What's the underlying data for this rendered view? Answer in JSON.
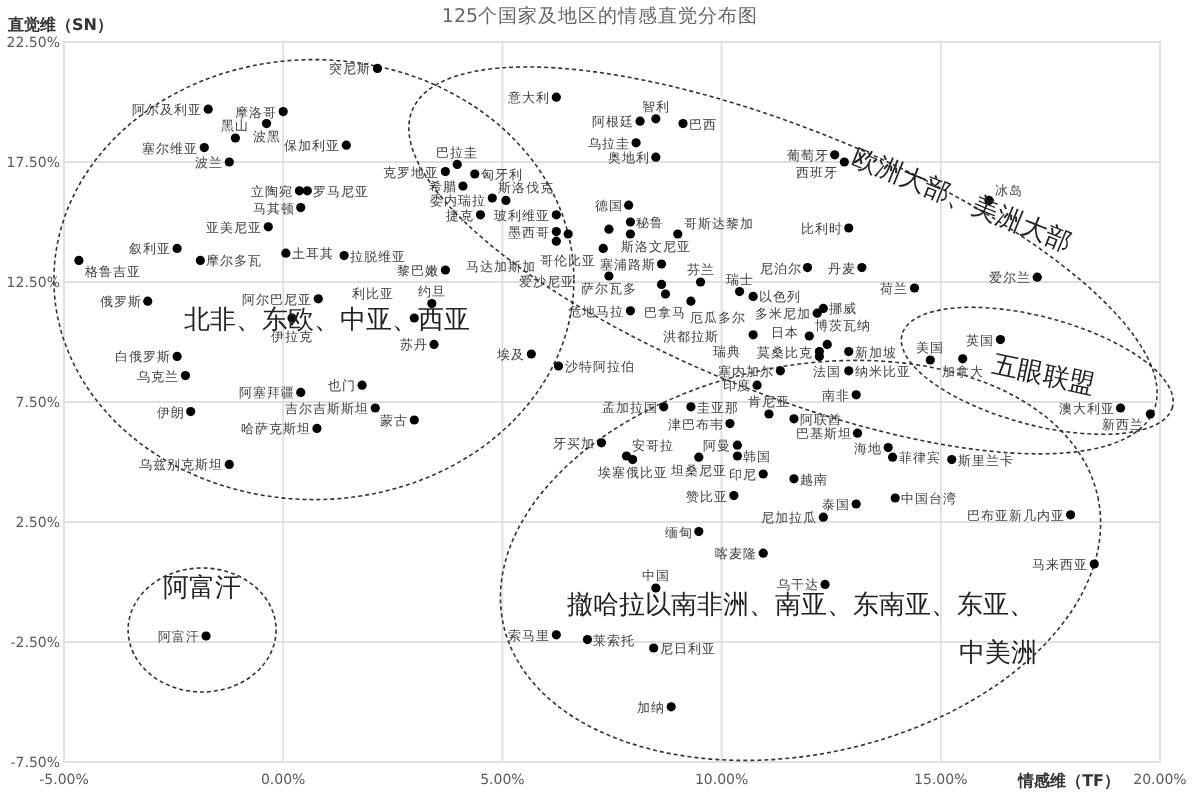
{
  "chart_data": {
    "type": "scatter",
    "title": "125个国家及地区的情感直觉分布图",
    "xlabel": "情感维（TF）",
    "ylabel": "直觉维（SN）",
    "xlim": [
      -5,
      20
    ],
    "ylim": [
      -7.5,
      22.5
    ],
    "xticks": [
      {
        "value": -5,
        "label": "-5.00%"
      },
      {
        "value": 0,
        "label": "0.00%"
      },
      {
        "value": 5,
        "label": "5.00%"
      },
      {
        "value": 10,
        "label": "10.00%"
      },
      {
        "value": 15,
        "label": "15.00%"
      },
      {
        "value": 20,
        "label": "20.00%"
      }
    ],
    "yticks": [
      {
        "value": -7.5,
        "label": "-7.50%"
      },
      {
        "value": -2.5,
        "label": "-2.50%"
      },
      {
        "value": 2.5,
        "label": "2.50%"
      },
      {
        "value": 7.5,
        "label": "7.50%"
      },
      {
        "value": 12.5,
        "label": "12.50%"
      },
      {
        "value": 17.5,
        "label": "17.50%"
      },
      {
        "value": 22.5,
        "label": "22.50%"
      }
    ],
    "grid": true,
    "marker": "circle",
    "series": [
      {
        "color": "#000000",
        "x": [
          2.15,
          -1.71,
          0.0,
          -0.38,
          -1.09,
          1.44,
          -1.8,
          -1.23,
          0.37,
          0.55,
          0.4,
          -0.34,
          -2.42,
          -4.66,
          -1.89,
          0.06,
          1.39,
          0.8,
          -3.09,
          0.2,
          -2.42,
          -2.23,
          1.8,
          0.4,
          -2.11,
          2.1,
          0.77,
          -1.23,
          -1.76,
          3.39,
          2.99,
          3.44,
          2.99,
          3.7,
          5.66,
          6.28,
          6.23,
          8.5,
          8.14,
          9.12,
          8.05,
          8.5,
          3.97,
          3.7,
          4.37,
          4.1,
          4.77,
          5.08,
          4.5,
          6.23,
          7.88,
          7.92,
          7.43,
          6.23,
          6.5,
          6.23,
          7.3,
          9.0,
          7.92,
          8.63,
          9.52,
          7.43,
          8.63,
          8.72,
          7.92,
          9.3,
          10.41,
          10.72,
          12.32,
          12.18,
          12.0,
          12.41,
          12.9,
          12.23,
          12.23,
          12.9,
          13.07,
          10.72,
          10.81,
          11.34,
          11.08,
          12.58,
          12.8,
          16.1,
          12.9,
          11.96,
          13.2,
          14.4,
          17.2,
          14.76,
          15.5,
          16.36,
          19.1,
          19.78,
          8.68,
          9.3,
          10.19,
          7.26,
          7.83,
          7.97,
          9.48,
          10.36,
          10.36,
          10.28,
          10.95,
          9.48,
          10.95,
          8.5,
          6.23,
          6.94,
          8.45,
          8.85,
          11.65,
          13.1,
          13.8,
          13.9,
          15.25,
          13.07,
          11.65,
          13.96,
          12.32,
          17.96,
          18.5,
          12.36
        ],
        "values": [
          21.4,
          19.7,
          19.6,
          19.1,
          18.5,
          18.2,
          18.1,
          17.5,
          16.3,
          16.3,
          15.6,
          14.8,
          13.9,
          13.4,
          13.4,
          13.7,
          13.6,
          11.8,
          11.7,
          11.0,
          9.4,
          8.6,
          8.2,
          7.9,
          7.1,
          7.25,
          6.4,
          4.9,
          -2.25,
          11.6,
          11.0,
          9.9,
          6.75,
          13.0,
          9.5,
          9.0,
          20.2,
          19.3,
          19.2,
          19.1,
          18.3,
          17.7,
          17.4,
          17.1,
          17.0,
          16.5,
          16.0,
          15.9,
          15.3,
          15.3,
          15.7,
          15.0,
          14.7,
          14.6,
          14.5,
          14.2,
          13.9,
          14.5,
          14.5,
          13.25,
          12.5,
          12.75,
          12.4,
          12.0,
          11.3,
          11.7,
          12.1,
          11.9,
          11.4,
          11.2,
          10.25,
          9.9,
          9.6,
          9.6,
          9.4,
          8.8,
          7.8,
          10.3,
          8.2,
          8.8,
          7.0,
          17.8,
          17.5,
          15.9,
          14.75,
          13.1,
          13.1,
          12.25,
          12.7,
          9.25,
          9.3,
          10.1,
          7.25,
          7.0,
          7.3,
          7.3,
          6.6,
          5.8,
          5.25,
          5.1,
          5.2,
          5.7,
          5.25,
          3.6,
          4.5,
          2.1,
          1.2,
          -0.25,
          -2.2,
          -2.4,
          -2.75,
          -5.2,
          6.8,
          6.2,
          5.6,
          5.2,
          5.1,
          3.25,
          4.3,
          3.5,
          2.7,
          2.8,
          0.75,
          -0.1
        ]
      }
    ],
    "annotations": [
      "北非、东欧、中亚、西亚",
      "欧洲大部、美洲大部",
      "五眼联盟",
      "撤哈拉以南非洲、南亚、东南亚、东亚、",
      "中美洲",
      "阿富汗",
      {
        "text": "突尼斯",
        "x": 2.15,
        "y": 21.4
      },
      {
        "text": "阿尔及利亚",
        "x": -1.71,
        "y": 19.7
      },
      {
        "text": "摩洛哥",
        "x": 0.0,
        "y": 19.6
      },
      {
        "text": "波黑",
        "x": -0.38,
        "y": 19.1
      },
      {
        "text": "黑山",
        "x": -1.09,
        "y": 18.5
      },
      {
        "text": "保加利亚",
        "x": 1.44,
        "y": 18.2
      },
      {
        "text": "塞尔维亚",
        "x": -1.8,
        "y": 18.1
      },
      {
        "text": "波兰",
        "x": -1.23,
        "y": 17.5
      },
      {
        "text": "立陶宛",
        "x": 0.37,
        "y": 16.3
      },
      {
        "text": "罗马尼亚",
        "x": 0.55,
        "y": 16.3
      },
      {
        "text": "马其顿",
        "x": 0.4,
        "y": 15.6
      },
      {
        "text": "亚美尼亚",
        "x": -0.34,
        "y": 14.8
      },
      {
        "text": "叙利亚",
        "x": -2.42,
        "y": 13.9
      },
      {
        "text": "格鲁吉亚",
        "x": -4.66,
        "y": 13.4
      },
      {
        "text": "摩尔多瓦",
        "x": -1.89,
        "y": 13.4
      },
      {
        "text": "土耳其",
        "x": 0.06,
        "y": 13.7
      },
      {
        "text": "拉脱维亚",
        "x": 1.39,
        "y": 13.6
      },
      {
        "text": "阿尔巴尼亚",
        "x": 0.8,
        "y": 11.8
      },
      {
        "text": "俄罗斯",
        "x": -3.09,
        "y": 11.7
      },
      {
        "text": "伊拉克",
        "x": 0.2,
        "y": 11.0
      },
      {
        "text": "白俄罗斯",
        "x": -2.42,
        "y": 9.4
      },
      {
        "text": "乌克兰",
        "x": -2.23,
        "y": 8.6
      },
      {
        "text": "也门",
        "x": 1.8,
        "y": 8.2
      },
      {
        "text": "阿塞拜疆",
        "x": 0.4,
        "y": 7.9
      },
      {
        "text": "伊朗",
        "x": -2.11,
        "y": 7.1
      },
      {
        "text": "吉尔吉斯斯坦",
        "x": 2.1,
        "y": 7.25
      },
      {
        "text": "哈萨克斯坦",
        "x": 0.77,
        "y": 6.4
      },
      {
        "text": "乌兹别克斯坦",
        "x": -1.23,
        "y": 4.9
      },
      {
        "text": "阿富汗",
        "x": -1.76,
        "y": -2.25
      },
      {
        "text": "约旦",
        "x": 3.39,
        "y": 11.6
      },
      {
        "text": "利比亚",
        "x": 2.99,
        "y": 11.0
      },
      {
        "text": "苏丹",
        "x": 3.44,
        "y": 9.9
      },
      {
        "text": "蒙古",
        "x": 2.99,
        "y": 6.75
      },
      {
        "text": "黎巴嫩",
        "x": 3.7,
        "y": 13.0
      },
      {
        "text": "埃及",
        "x": 5.66,
        "y": 9.5
      },
      {
        "text": "沙特阿拉伯",
        "x": 6.28,
        "y": 9.0
      },
      {
        "text": "意大利",
        "x": 6.23,
        "y": 20.2
      },
      {
        "text": "智利",
        "x": 8.5,
        "y": 19.3
      },
      {
        "text": "阿根廷",
        "x": 8.14,
        "y": 19.2
      },
      {
        "text": "巴西",
        "x": 9.12,
        "y": 19.1
      },
      {
        "text": "乌拉圭",
        "x": 8.05,
        "y": 18.3
      },
      {
        "text": "奥地利",
        "x": 8.5,
        "y": 17.7
      },
      {
        "text": "巴拉圭",
        "x": 3.97,
        "y": 17.4
      },
      {
        "text": "克罗地亚",
        "x": 3.7,
        "y": 17.1
      },
      {
        "text": "匈牙利",
        "x": 4.37,
        "y": 17.0
      },
      {
        "text": "希腊",
        "x": 4.1,
        "y": 16.5
      },
      {
        "text": "斯洛伐克",
        "x": 4.77,
        "y": 16.0
      },
      {
        "text": "委内瑞拉",
        "x": 5.08,
        "y": 15.9
      },
      {
        "text": "捷克",
        "x": 4.5,
        "y": 15.3
      },
      {
        "text": "玻利维亚",
        "x": 6.23,
        "y": 15.3
      },
      {
        "text": "德国",
        "x": 7.88,
        "y": 15.7
      },
      {
        "text": "秘鲁",
        "x": 7.92,
        "y": 15.0
      },
      {
        "text": "斯洛文尼亚",
        "x": 7.43,
        "y": 14.7
      },
      {
        "text": "墨西哥",
        "x": 6.23,
        "y": 14.6
      },
      {
        "text": "哥伦比亚",
        "x": 6.5,
        "y": 14.5
      },
      {
        "text": "马达加斯加",
        "x": 6.23,
        "y": 14.2
      },
      {
        "text": "爱沙尼亚",
        "x": 7.3,
        "y": 13.9
      },
      {
        "text": "哥斯达黎加",
        "x": 9.0,
        "y": 14.5
      },
      {
        "text": "塞浦路斯",
        "x": 8.63,
        "y": 13.25
      },
      {
        "text": "芬兰",
        "x": 9.52,
        "y": 12.5
      },
      {
        "text": "萨尔瓦多",
        "x": 7.43,
        "y": 12.75
      },
      {
        "text": "厄瓜多尔",
        "x": 8.63,
        "y": 12.4
      },
      {
        "text": "巴拿马",
        "x": 8.72,
        "y": 12.0
      },
      {
        "text": "危地马拉",
        "x": 7.92,
        "y": 11.3
      },
      {
        "text": "洪都拉斯",
        "x": 9.3,
        "y": 11.7
      },
      {
        "text": "瑞士",
        "x": 10.41,
        "y": 12.1
      },
      {
        "text": "以色列",
        "x": 10.72,
        "y": 11.9
      },
      {
        "text": "挪威",
        "x": 12.32,
        "y": 11.4
      },
      {
        "text": "多米尼加",
        "x": 12.18,
        "y": 11.2
      },
      {
        "text": "博茨瓦纳",
        "x": 12.0,
        "y": 10.25
      },
      {
        "text": "法国",
        "x": 12.41,
        "y": 9.9
      },
      {
        "text": "新加坡",
        "x": 12.9,
        "y": 9.6
      },
      {
        "text": "莫桑比克",
        "x": 12.23,
        "y": 9.6
      },
      {
        "text": "日本",
        "x": 12.23,
        "y": 9.4
      },
      {
        "text": "纳米比亚",
        "x": 12.9,
        "y": 8.8
      },
      {
        "text": "南非",
        "x": 13.07,
        "y": 7.8
      },
      {
        "text": "瑞典",
        "x": 10.72,
        "y": 10.3
      },
      {
        "text": "印度",
        "x": 10.81,
        "y": 8.2
      },
      {
        "text": "塞内加尔",
        "x": 11.34,
        "y": 8.8
      },
      {
        "text": "肯尼亚",
        "x": 11.08,
        "y": 7.0
      },
      {
        "text": "葡萄牙",
        "x": 12.58,
        "y": 17.8
      },
      {
        "text": "西班牙",
        "x": 12.8,
        "y": 17.5
      },
      {
        "text": "冰岛",
        "x": 16.1,
        "y": 15.9
      },
      {
        "text": "比利时",
        "x": 12.9,
        "y": 14.75
      },
      {
        "text": "尼泊尔",
        "x": 11.96,
        "y": 13.1
      },
      {
        "text": "丹麦",
        "x": 13.2,
        "y": 13.1
      },
      {
        "text": "荷兰",
        "x": 14.4,
        "y": 12.25
      },
      {
        "text": "爱尔兰",
        "x": 17.2,
        "y": 12.7
      },
      {
        "text": "美国",
        "x": 14.76,
        "y": 9.25
      },
      {
        "text": "加拿大",
        "x": 15.5,
        "y": 9.3
      },
      {
        "text": "英国",
        "x": 16.36,
        "y": 10.1
      },
      {
        "text": "澳大利亚",
        "x": 19.1,
        "y": 7.25
      },
      {
        "text": "新西兰",
        "x": 19.78,
        "y": 7.0
      },
      {
        "text": "孟加拉国",
        "x": 8.68,
        "y": 7.3
      },
      {
        "text": "圭亚那",
        "x": 9.3,
        "y": 7.3
      },
      {
        "text": "津巴布韦",
        "x": 10.19,
        "y": 6.6
      },
      {
        "text": "牙买加",
        "x": 7.26,
        "y": 5.8
      },
      {
        "text": "安哥拉",
        "x": 7.83,
        "y": 5.25
      },
      {
        "text": "埃塞俄比亚",
        "x": 7.97,
        "y": 5.1
      },
      {
        "text": "坦桑尼亚",
        "x": 9.48,
        "y": 5.2
      },
      {
        "text": "阿曼",
        "x": 10.36,
        "y": 5.7
      },
      {
        "text": "韩国",
        "x": 10.36,
        "y": 5.25
      },
      {
        "text": "赞比亚",
        "x": 10.28,
        "y": 3.6
      },
      {
        "text": "印尼",
        "x": 10.95,
        "y": 4.5
      },
      {
        "text": "缅甸",
        "x": 9.48,
        "y": 2.1
      },
      {
        "text": "喀麦隆",
        "x": 10.95,
        "y": 1.2
      },
      {
        "text": "中国",
        "x": 8.5,
        "y": -0.25
      },
      {
        "text": "索马里",
        "x": 6.23,
        "y": -2.2
      },
      {
        "text": "莱索托",
        "x": 6.94,
        "y": -2.4
      },
      {
        "text": "尼日利亚",
        "x": 8.45,
        "y": -2.75
      },
      {
        "text": "加纳",
        "x": 8.85,
        "y": -5.2
      },
      {
        "text": "阿联酋",
        "x": 11.65,
        "y": 6.8
      },
      {
        "text": "巴基斯坦",
        "x": 13.1,
        "y": 6.2
      },
      {
        "text": "海地",
        "x": 13.8,
        "y": 5.6
      },
      {
        "text": "菲律宾",
        "x": 13.9,
        "y": 5.2
      },
      {
        "text": "斯里兰卡",
        "x": 15.25,
        "y": 5.1
      },
      {
        "text": "泰国",
        "x": 13.07,
        "y": 3.25
      },
      {
        "text": "越南",
        "x": 11.65,
        "y": 4.3
      },
      {
        "text": "中国台湾",
        "x": 13.96,
        "y": 3.5
      },
      {
        "text": "尼加拉瓜",
        "x": 12.32,
        "y": 2.7
      },
      {
        "text": "巴布亚新几内亚",
        "x": 17.96,
        "y": 2.8
      },
      {
        "text": "马来西亚",
        "x": 18.5,
        "y": 0.75
      },
      {
        "text": "乌干达",
        "x": 12.36,
        "y": -0.1
      }
    ]
  }
}
